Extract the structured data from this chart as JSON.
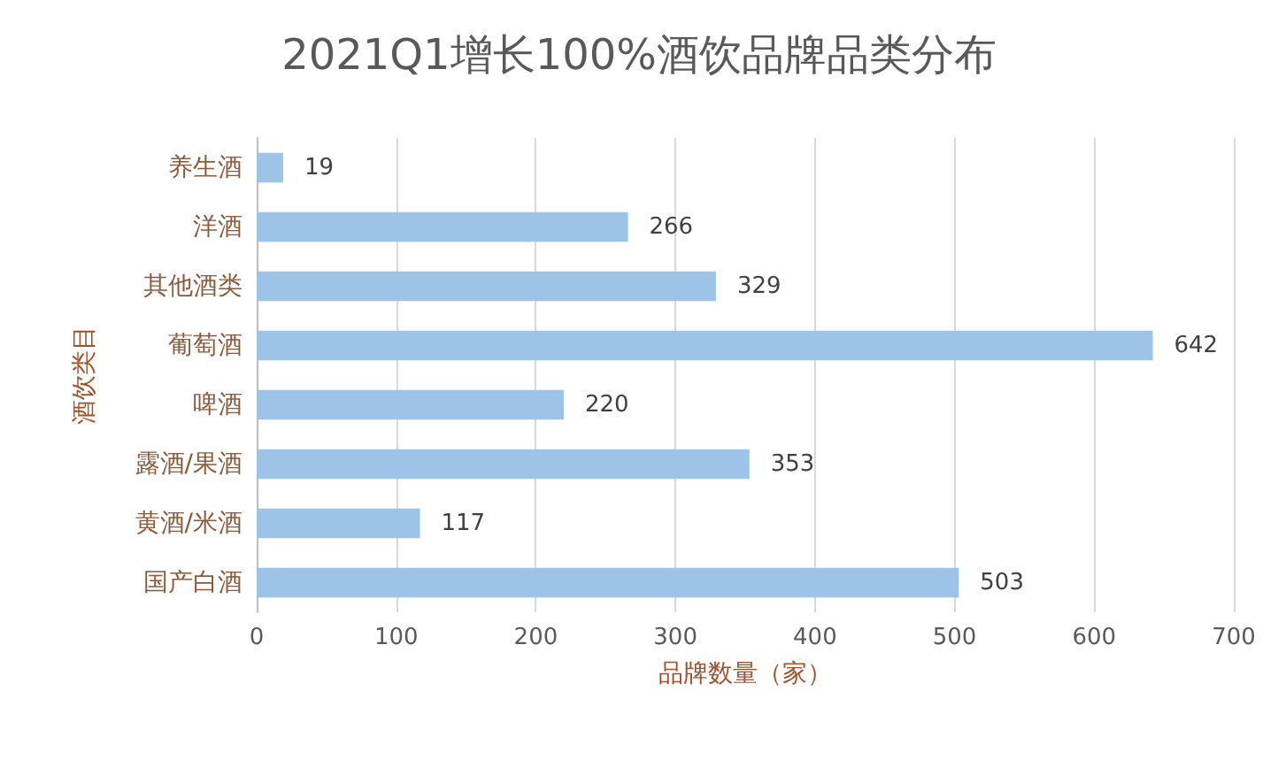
{
  "chart_data": {
    "type": "bar",
    "orientation": "horizontal",
    "title": "2021Q1增长100%酒饮品牌品类分布",
    "xlabel": "品牌数量（家）",
    "ylabel": "酒饮类目",
    "categories": [
      "养生酒",
      "洋酒",
      "其他酒类",
      "葡萄酒",
      "啤酒",
      "露酒/果酒",
      "黄酒/米酒",
      "国产白酒"
    ],
    "values": [
      19,
      266,
      329,
      642,
      220,
      353,
      117,
      503
    ],
    "color": "#9dc3e6",
    "xlim": [
      0,
      700
    ],
    "xticks": [
      0,
      100,
      200,
      300,
      400,
      500,
      600,
      700
    ],
    "grid": "x",
    "data_labels": true
  }
}
